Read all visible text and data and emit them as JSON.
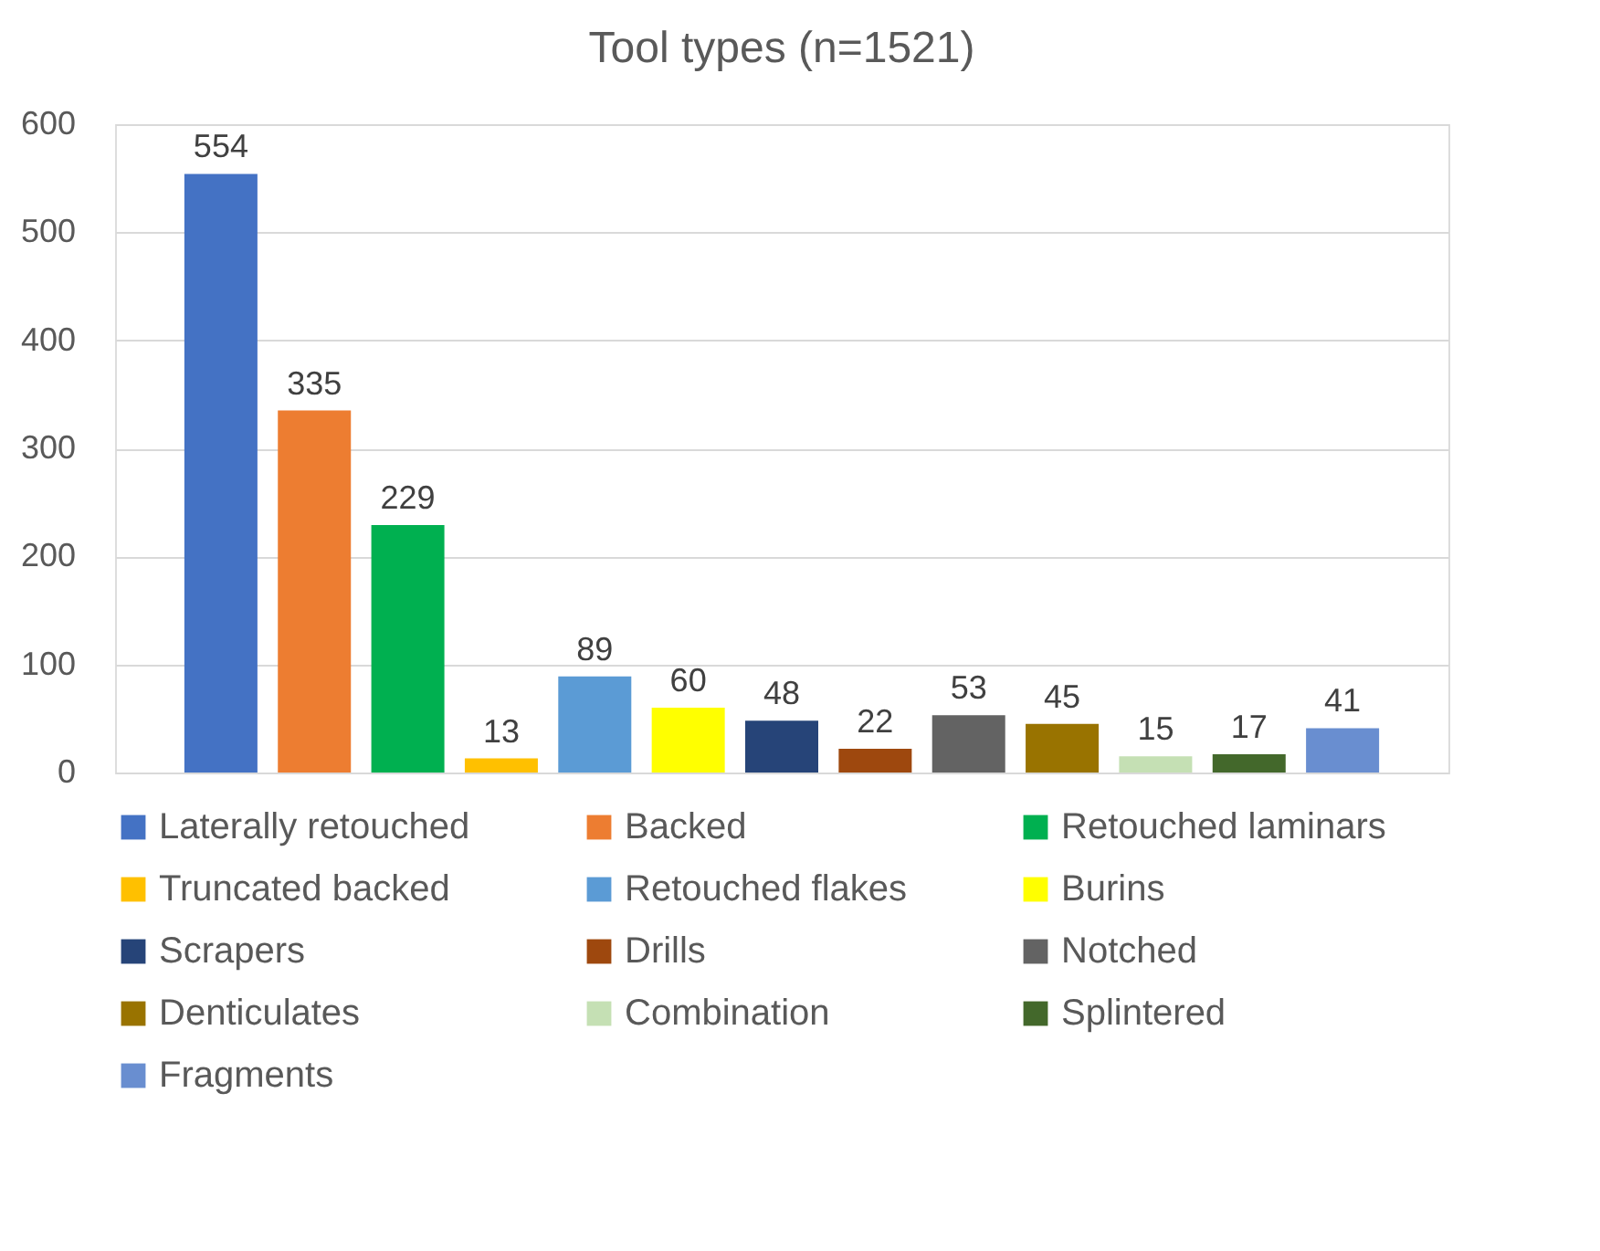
{
  "chart_data": {
    "type": "bar",
    "title": "Tool types (n=1521)",
    "categories": [
      null
    ],
    "series": [
      {
        "name": "Laterally retouched",
        "color": "#4472c4",
        "values": [
          554
        ]
      },
      {
        "name": "Backed",
        "color": "#ed7d31",
        "values": [
          335
        ]
      },
      {
        "name": "Retouched laminars",
        "color": "#00b050",
        "values": [
          229
        ]
      },
      {
        "name": "Truncated backed",
        "color": "#ffc000",
        "values": [
          13
        ]
      },
      {
        "name": "Retouched flakes",
        "color": "#5b9bd5",
        "values": [
          89
        ]
      },
      {
        "name": "Burins",
        "color": "#ffff00",
        "values": [
          60
        ]
      },
      {
        "name": "Scrapers",
        "color": "#264478",
        "values": [
          48
        ]
      },
      {
        "name": "Drills",
        "color": "#9e480e",
        "values": [
          22
        ]
      },
      {
        "name": "Notched",
        "color": "#636363",
        "values": [
          53
        ]
      },
      {
        "name": "Denticulates",
        "color": "#997300",
        "values": [
          45
        ]
      },
      {
        "name": "Combination",
        "color": "#c5e0b4",
        "values": [
          15
        ]
      },
      {
        "name": "Splintered",
        "color": "#43682b",
        "values": [
          17
        ]
      },
      {
        "name": "Fragments",
        "color": "#698ed0",
        "values": [
          41
        ]
      }
    ],
    "ylim": [
      0,
      600
    ],
    "yticks": [
      0,
      100,
      200,
      300,
      400,
      500,
      600
    ],
    "grid": "y",
    "legend": "bottom",
    "data_labels": true
  }
}
